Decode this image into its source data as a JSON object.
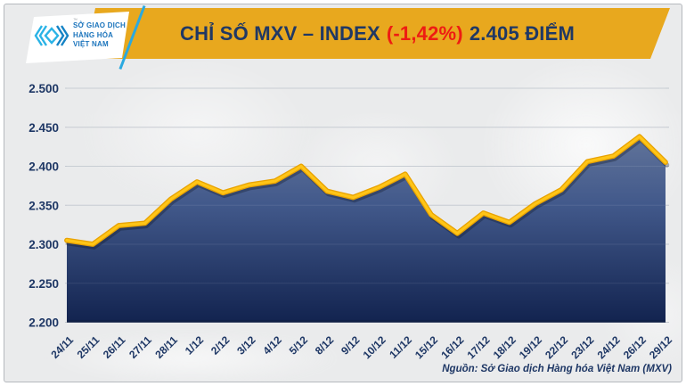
{
  "header": {
    "logo": {
      "lines": [
        "SỞ GIAO DỊCH",
        "HÀNG HÓA",
        "VIỆT NAM"
      ],
      "trademark": "™"
    },
    "title": {
      "main": "CHỈ SỐ MXV – INDEX",
      "change": "(-1,42%)",
      "value": "2.405 ĐIỂM"
    }
  },
  "chart_data": {
    "type": "area",
    "title": "CHỈ SỐ MXV – INDEX (-1,42%) 2.405 ĐIỂM",
    "categories": [
      "24/11",
      "25/11",
      "26/11",
      "27/11",
      "28/11",
      "1/12",
      "2/12",
      "3/12",
      "4/12",
      "5/12",
      "8/12",
      "9/12",
      "10/12",
      "11/12",
      "15/12",
      "16/12",
      "17/12",
      "18/12",
      "19/12",
      "22/12",
      "23/12",
      "24/12",
      "26/12",
      "29/12"
    ],
    "values": [
      2305,
      2300,
      2324,
      2327,
      2358,
      2380,
      2366,
      2376,
      2381,
      2400,
      2368,
      2360,
      2373,
      2390,
      2338,
      2314,
      2340,
      2328,
      2352,
      2370,
      2406,
      2413,
      2438,
      2405
    ],
    "xlabel": "",
    "ylabel": "",
    "ylim": [
      2200,
      2500
    ],
    "ytick_step": 50,
    "ytick_labels": [
      "2.200",
      "2.250",
      "2.300",
      "2.350",
      "2.400",
      "2.450",
      "2.500"
    ],
    "grid": "horizontal",
    "legend": "none"
  },
  "colors": {
    "banner_gold": "#e8a81e",
    "navy_text": "#1e3765",
    "negative_red": "#ee1c12",
    "line_gold": "#ffc517",
    "line_gold_edge": "#e8a200",
    "fill_top": "#66789c",
    "fill_mid": "#42598b",
    "fill_bottom": "#12234f",
    "grid_line": "#c3c8cf",
    "logo_cyan": "#2ab3e6",
    "logo_blue": "#1583c5"
  },
  "footer": {
    "source": "Nguồn: Sở Giao dịch Hàng hóa Việt Nam (MXV)"
  }
}
